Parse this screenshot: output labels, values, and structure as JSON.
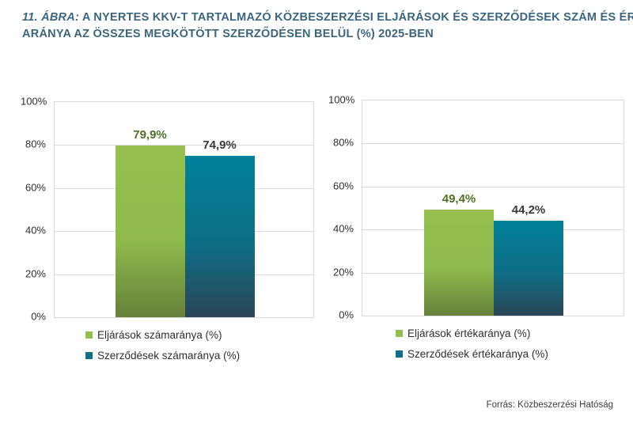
{
  "header": {
    "prefix": "11. ÁBRA:",
    "line1": " A NYERTES KKV-T TARTALMAZÓ KÖZBESZERZÉSI ELJÁRÁSOK ÉS SZERZŐDÉSEK SZÁM ÉS ÉRTÉK-",
    "line2": "ARÁNYA AZ ÖSSZES MEGKÖTÖTT SZERZŐDÉSEN BELÜL (%) 2025-BEN"
  },
  "footer": {
    "source": "Forrás: Közbeszerzési Hatóság"
  },
  "colors": {
    "title": "#3b657e",
    "grid": "#d9d9d9",
    "bar_green_top": "#96c151",
    "bar_green_mid": "#8ebb4c",
    "bar_green_bottom": "#66813a",
    "bar_teal_top": "#008099",
    "bar_teal_mid": "#0e6e86",
    "bar_teal_bottom": "#2b4557",
    "legend_green": "#94bf4e",
    "legend_teal": "#0f708a",
    "value_label_green": "#4d7026",
    "value_label_dark": "#3a3a39",
    "tick_text": "#2e2e2e"
  },
  "chart_data": [
    {
      "type": "bar",
      "categories": [
        ""
      ],
      "series": [
        {
          "name": "Eljárások számaránya (%)",
          "value": 79.9,
          "label": "79,9%",
          "color_key": "green"
        },
        {
          "name": "Szerződések számaránya (%)",
          "value": 74.9,
          "label": "74,9%",
          "color_key": "teal"
        }
      ],
      "title": "",
      "xlabel": "",
      "ylabel": "",
      "ylim": [
        0,
        100
      ],
      "yticks": [
        0,
        20,
        40,
        60,
        80,
        100
      ],
      "ytick_suffix": "%",
      "grid": true,
      "legend_position": "bottom"
    },
    {
      "type": "bar",
      "categories": [
        ""
      ],
      "series": [
        {
          "name": "Eljárások értékaránya (%)",
          "value": 49.4,
          "label": "49,4%",
          "color_key": "green"
        },
        {
          "name": "Szerződések értékaránya (%)",
          "value": 44.2,
          "label": "44,2%",
          "color_key": "teal"
        }
      ],
      "title": "",
      "xlabel": "",
      "ylabel": "",
      "ylim": [
        0,
        100
      ],
      "yticks": [
        0,
        20,
        40,
        60,
        80,
        100
      ],
      "ytick_suffix": "%",
      "grid": true,
      "legend_position": "bottom"
    }
  ]
}
